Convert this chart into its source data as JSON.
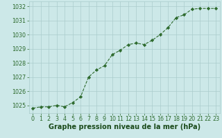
{
  "x": [
    0,
    1,
    2,
    3,
    4,
    5,
    6,
    7,
    8,
    9,
    10,
    11,
    12,
    13,
    14,
    15,
    16,
    17,
    18,
    19,
    20,
    21,
    22,
    23
  ],
  "y": [
    1024.8,
    1024.9,
    1024.9,
    1025.0,
    1024.9,
    1025.2,
    1025.6,
    1027.0,
    1027.5,
    1027.8,
    1028.6,
    1028.9,
    1029.3,
    1029.4,
    1029.3,
    1029.6,
    1030.0,
    1030.5,
    1031.2,
    1031.4,
    1031.8,
    1031.85,
    1031.85,
    1031.85
  ],
  "ylim": [
    1024.45,
    1032.35
  ],
  "xlim": [
    -0.5,
    23.5
  ],
  "yticks": [
    1025,
    1026,
    1027,
    1028,
    1029,
    1030,
    1031,
    1032
  ],
  "xticks": [
    0,
    1,
    2,
    3,
    4,
    5,
    6,
    7,
    8,
    9,
    10,
    11,
    12,
    13,
    14,
    15,
    16,
    17,
    18,
    19,
    20,
    21,
    22,
    23
  ],
  "line_color": "#2d6a2d",
  "marker": "D",
  "marker_size": 2.2,
  "bg_color": "#cce8e8",
  "grid_color": "#aacccc",
  "xlabel": "Graphe pression niveau de la mer (hPa)",
  "xlabel_color": "#1a4a1a",
  "xlabel_fontsize": 7.0,
  "tick_fontsize": 5.8,
  "tick_color": "#2d6a2d",
  "fig_bg": "#cce8e8"
}
